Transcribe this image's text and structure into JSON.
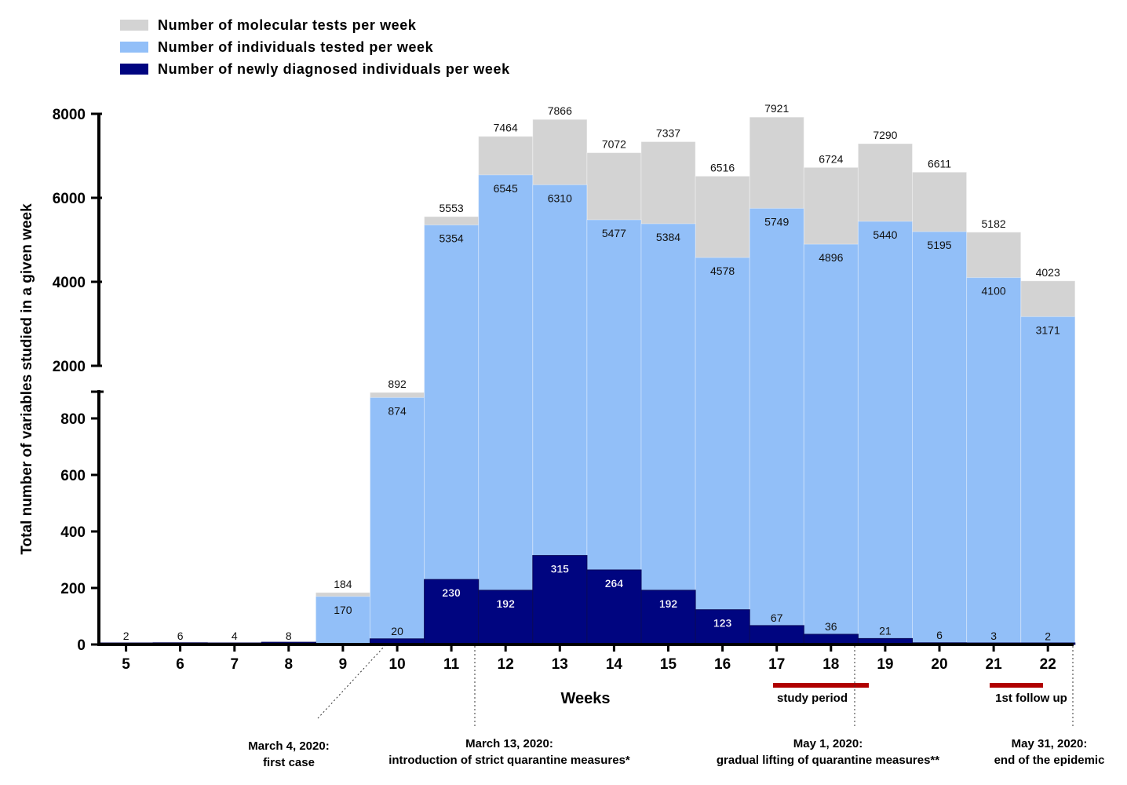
{
  "chart_data": {
    "type": "bar",
    "xlabel": "Weeks",
    "ylabel": "Total number of variables studied in a given week",
    "categories": [
      "5",
      "6",
      "7",
      "8",
      "9",
      "10",
      "11",
      "12",
      "13",
      "14",
      "15",
      "16",
      "17",
      "18",
      "19",
      "20",
      "21",
      "22"
    ],
    "y_axis": {
      "broken": true,
      "lower_range": [
        0,
        900
      ],
      "upper_range": [
        2000,
        8000
      ],
      "lower_ticks": [
        "0",
        "200",
        "400",
        "600",
        "800"
      ],
      "upper_ticks": [
        "2000",
        "4000",
        "6000",
        "8000"
      ]
    },
    "legend_position": "top-left",
    "series": [
      {
        "name": "Number of molecular tests per week",
        "color": "#d3d3d3",
        "values": [
          null,
          null,
          null,
          null,
          184,
          892,
          5553,
          7464,
          7866,
          7072,
          7337,
          6516,
          7921,
          6724,
          7290,
          6611,
          5182,
          4023
        ]
      },
      {
        "name": "Number of individuals tested per week",
        "color": "#92bff8",
        "values": [
          null,
          null,
          null,
          null,
          170,
          874,
          5354,
          6545,
          6310,
          5477,
          5384,
          4578,
          5749,
          4896,
          5440,
          5195,
          4100,
          3171
        ]
      },
      {
        "name": "Number of newly diagnosed individuals per week",
        "color": "#000580",
        "values": [
          2,
          6,
          4,
          8,
          null,
          20,
          230,
          192,
          315,
          264,
          192,
          123,
          67,
          36,
          21,
          6,
          3,
          2
        ]
      }
    ],
    "top_labels": [
      "2",
      "6",
      "4",
      "8",
      "184",
      "892",
      "5553",
      "7464",
      "7866",
      "7072",
      "7337",
      "6516",
      "7921",
      "6724",
      "7290",
      "6611",
      "5182",
      "4023"
    ],
    "mid_labels": [
      "",
      "",
      "",
      "",
      "170",
      "874",
      "5354",
      "6545",
      "6310",
      "5477",
      "5384",
      "4578",
      "5749",
      "4896",
      "5440",
      "5195",
      "4100",
      "3171"
    ],
    "diag_labels": [
      "",
      "",
      "",
      "",
      "",
      "20",
      "230",
      "192",
      "315",
      "264",
      "192",
      "123",
      "67",
      "36",
      "21",
      "6",
      "3",
      "2"
    ],
    "annotations": [
      {
        "line1": "March 4, 2020:",
        "line2": "first case"
      },
      {
        "line1": "March 13, 2020:",
        "line2": "introduction of strict quarantine measures*"
      },
      {
        "line1": "May 1, 2020:",
        "line2": "gradual lifting of quarantine measures**"
      },
      {
        "line1": "May 31, 2020:",
        "line2": "end of the epidemic"
      }
    ],
    "periods": [
      {
        "label": "study period",
        "color": "#b00000"
      },
      {
        "label": "1st follow up",
        "color": "#b00000"
      }
    ]
  }
}
